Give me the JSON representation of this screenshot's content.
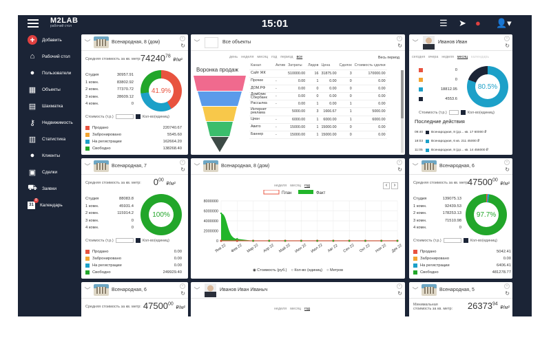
{
  "app": {
    "logo": "M2LAB",
    "logo_sub": "рабочий стол",
    "time": "15:01"
  },
  "sidebar": {
    "items": [
      {
        "label": "Добавить",
        "icon": "plus-circle-icon"
      },
      {
        "label": "Рабочий стол",
        "icon": "home-icon"
      },
      {
        "label": "Пользователи",
        "icon": "user-icon"
      },
      {
        "label": "Объекты",
        "icon": "building-icon"
      },
      {
        "label": "Шахматка",
        "icon": "grid-icon"
      },
      {
        "label": "Недвижимость",
        "icon": "key-icon"
      },
      {
        "label": "Статистика",
        "icon": "stats-icon"
      },
      {
        "label": "Клиенты",
        "icon": "clients-icon"
      },
      {
        "label": "Сделки",
        "icon": "briefcase-icon"
      },
      {
        "label": "Заявки",
        "icon": "cart-icon"
      },
      {
        "label": "Календарь",
        "icon": "calendar-icon",
        "badge": "8"
      }
    ]
  },
  "common": {
    "price_label": "Средняя стоимость за кв. метр:",
    "price_unit": "₽/м²",
    "cost_label": "Стоимость (т.р.)",
    "count_label": "Кол-во(единиц)"
  },
  "colors": {
    "sold": "#e8533f",
    "reserved": "#f2a531",
    "unregistered": "#1ca0c8",
    "free": "#22a62a",
    "navy": "#1b2436"
  },
  "p1": {
    "title": "Всенародная, 8 (дом)",
    "price_int": "74240",
    "price_dec": "78",
    "percent": "41.9%",
    "rooms": [
      {
        "k": "Студия",
        "v": "30957.91"
      },
      {
        "k": "1 комн.",
        "v": "83802.92"
      },
      {
        "k": "2 комн.",
        "v": "77370.72"
      },
      {
        "k": "3 комн.",
        "v": "28609.12"
      },
      {
        "k": "4 комн.",
        "v": "0"
      }
    ],
    "status": [
      {
        "k": "Продано",
        "v": "220740.67"
      },
      {
        "k": "Забронировано",
        "v": "5545.60"
      },
      {
        "k": "На регистрации",
        "v": "162664.20"
      },
      {
        "k": "Свободно",
        "v": "138268.40"
      }
    ]
  },
  "p2": {
    "title": "Все объекты",
    "tabs": [
      "день",
      "неделя",
      "месяц",
      "год",
      "период",
      "все"
    ],
    "all_period": "Весь период",
    "funnel_title": "Воронка продаж",
    "columns": [
      "Канал",
      "Актив",
      "Затраты",
      "Лидов",
      "Цена",
      "Сделок",
      "Стоимость сделки"
    ],
    "rows": [
      [
        "Сайт ЖК",
        "",
        "510000.00",
        "16",
        "31875.00",
        "3",
        "170000.00"
      ],
      [
        "Прочее",
        "-",
        "0.00",
        "1",
        "0.00",
        "0",
        "0.00"
      ],
      [
        "ДОМ.РФ",
        "-",
        "0.00",
        "0",
        "0.00",
        "0",
        "0.00"
      ],
      [
        "ДомКлик Сбербанк",
        "-",
        "0.00",
        "0",
        "0.00",
        "0",
        "0.00"
      ],
      [
        "Рассылка",
        "-",
        "0.00",
        "1",
        "0.00",
        "1",
        "0.00"
      ],
      [
        "Интернет реклама",
        "",
        "5000.00",
        "3",
        "1666.67",
        "1",
        "5000.00"
      ],
      [
        "Циан",
        "-",
        "6000.00",
        "1",
        "6000.00",
        "1",
        "6000.00"
      ],
      [
        "Авито",
        "-",
        "15000.00",
        "1",
        "15000.00",
        "0",
        "0.00"
      ],
      [
        "Баннер",
        "-",
        "15000.00",
        "1",
        "15000.00",
        "0",
        "0.00"
      ]
    ]
  },
  "p3": {
    "title": "Иванов Иван",
    "tabs": [
      "сегодня",
      "вчера",
      "неделя",
      "месяц",
      "календарь"
    ],
    "values": [
      "0",
      "0",
      "18812.95",
      "4553.6"
    ],
    "percent": "80.5%",
    "recent_title": "Последние действия",
    "recent": [
      {
        "t": "09:40",
        "x": "Всенародная, 8 (до... кв. 17  60000 ₽"
      },
      {
        "t": "18:03",
        "x": "Всенародная, 6  кв. 211 45000 ₽"
      },
      {
        "t": "11:05",
        "x": "Всенародная, 8 (до... кв. 14  456000 ₽"
      }
    ]
  },
  "p4": {
    "title": "Всенародная, 7",
    "price_int": "0",
    "price_dec": "00",
    "percent": "100%",
    "rooms": [
      {
        "k": "Студия",
        "v": "88083.8"
      },
      {
        "k": "1 комн.",
        "v": "45931.4"
      },
      {
        "k": "2 комн.",
        "v": "115914.2"
      },
      {
        "k": "3 комн.",
        "v": "0"
      },
      {
        "k": "4 комн.",
        "v": "0"
      }
    ],
    "status": [
      {
        "k": "Продано",
        "v": "0.00"
      },
      {
        "k": "Забронировано",
        "v": "0.00"
      },
      {
        "k": "На регистрации",
        "v": "0.00"
      },
      {
        "k": "Свободно",
        "v": "249929.40"
      }
    ]
  },
  "p5": {
    "title": "Всенародная, 8 (дом)",
    "tabs": [
      "неделя",
      "месяц",
      "год"
    ],
    "radio": [
      "Стоимость (руб.)",
      "Кол-во (единиц)",
      "Метров"
    ]
  },
  "p6": {
    "title": "Всенародная, 6",
    "price_int": "47500",
    "price_dec": "00",
    "percent": "97.7%",
    "rooms": [
      {
        "k": "Студия",
        "v": "139075.13"
      },
      {
        "k": "1 комн.",
        "v": "92439.53"
      },
      {
        "k": "2 комн.",
        "v": "178253.13"
      },
      {
        "k": "3 комн.",
        "v": "71510.98"
      },
      {
        "k": "4 комн.",
        "v": "0"
      }
    ],
    "status": [
      {
        "k": "Продано",
        "v": "5042.41"
      },
      {
        "k": "Забронировано",
        "v": "0.00"
      },
      {
        "k": "На регистрации",
        "v": "6406.41"
      },
      {
        "k": "Свободно",
        "v": "481278.77"
      }
    ]
  },
  "p7": {
    "title": "Всенародная, 6",
    "price_int": "47500",
    "price_dec": "00"
  },
  "p8": {
    "title": "Иванов Иван Иваныч",
    "tabs": [
      "неделя",
      "месяц",
      "год"
    ]
  },
  "p9": {
    "title": "Всенародная, 5",
    "price_label": "Минимальная стоимость за кв. метр:",
    "price_int": "26373",
    "price_dec": "94"
  },
  "chart_data": {
    "type": "line",
    "categories": [
      "Янв 22",
      "Фев 22",
      "Мар 22",
      "Апр 22",
      "Май 22",
      "Июн 22",
      "Июл 22",
      "Авг 22",
      "Сен 22",
      "Окт 22",
      "Ноя 22",
      "Дек 22"
    ],
    "series": [
      {
        "name": "План",
        "values": [
          0,
          0,
          0,
          0,
          0,
          0,
          0,
          0,
          0,
          0,
          0,
          0
        ]
      },
      {
        "name": "Факт",
        "values": [
          5500000,
          400000,
          0,
          0,
          0,
          0,
          0,
          0,
          0,
          0,
          0,
          0
        ]
      }
    ],
    "yticks": [
      "8000000",
      "6000000",
      "4000000",
      "2000000",
      "0"
    ],
    "ylim": [
      0,
      8000000
    ]
  }
}
